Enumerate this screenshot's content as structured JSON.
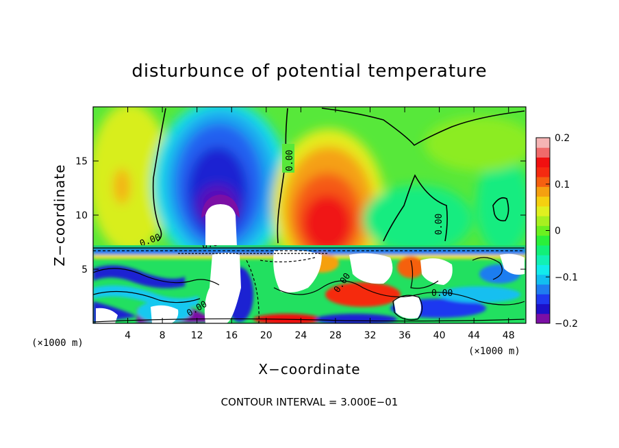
{
  "chart_data": {
    "type": "heatmap",
    "title": "disturbunce of potential temperature",
    "xlabel": "X−coordinate",
    "ylabel": "Z−coordinate",
    "x_unit_left": "(×1000 m)",
    "x_unit_right": "(×1000 m)",
    "footer": "CONTOUR INTERVAL = 3.000E−01",
    "xlim": [
      0,
      50
    ],
    "ylim": [
      0,
      20
    ],
    "x_ticks": [
      4,
      8,
      12,
      16,
      20,
      24,
      28,
      32,
      36,
      40,
      44,
      48
    ],
    "x_tick_labels": [
      "4",
      "8",
      "12",
      "16",
      "20",
      "24",
      "28",
      "32",
      "36",
      "40",
      "44",
      "48"
    ],
    "y_ticks": [
      5,
      10,
      15
    ],
    "y_tick_labels": [
      "5",
      "10",
      "15"
    ],
    "colorbar": {
      "min": -0.2,
      "max": 0.2,
      "tick_values": [
        0.2,
        0.1,
        0,
        -0.1,
        -0.2
      ],
      "tick_labels": [
        "0.2",
        "0.1",
        "0",
        "−0.1",
        "−0.2"
      ],
      "colors": [
        "#7b0fa5",
        "#1d10c8",
        "#1f39f0",
        "#1f7df0",
        "#12bff0",
        "#12ecec",
        "#12f0b4",
        "#12f078",
        "#2af03a",
        "#6bf020",
        "#a8f020",
        "#e0f020",
        "#f5d010",
        "#f5a010",
        "#f56010",
        "#f52a10",
        "#f01010",
        "#f06a6a",
        "#f5b4b4"
      ]
    },
    "contour_labels": [
      "0.00",
      "0.00",
      "0.00",
      "0.00",
      "0.00",
      "0.00",
      "0.00"
    ],
    "features": [
      {
        "name": "cold anomaly",
        "x": 15,
        "z": 12.5,
        "value": -0.2
      },
      {
        "name": "warm anomaly",
        "x": 27.5,
        "z": 10.5,
        "value": 0.15
      },
      {
        "name": "turbulent lower layer",
        "z_top": 7.2
      }
    ]
  }
}
